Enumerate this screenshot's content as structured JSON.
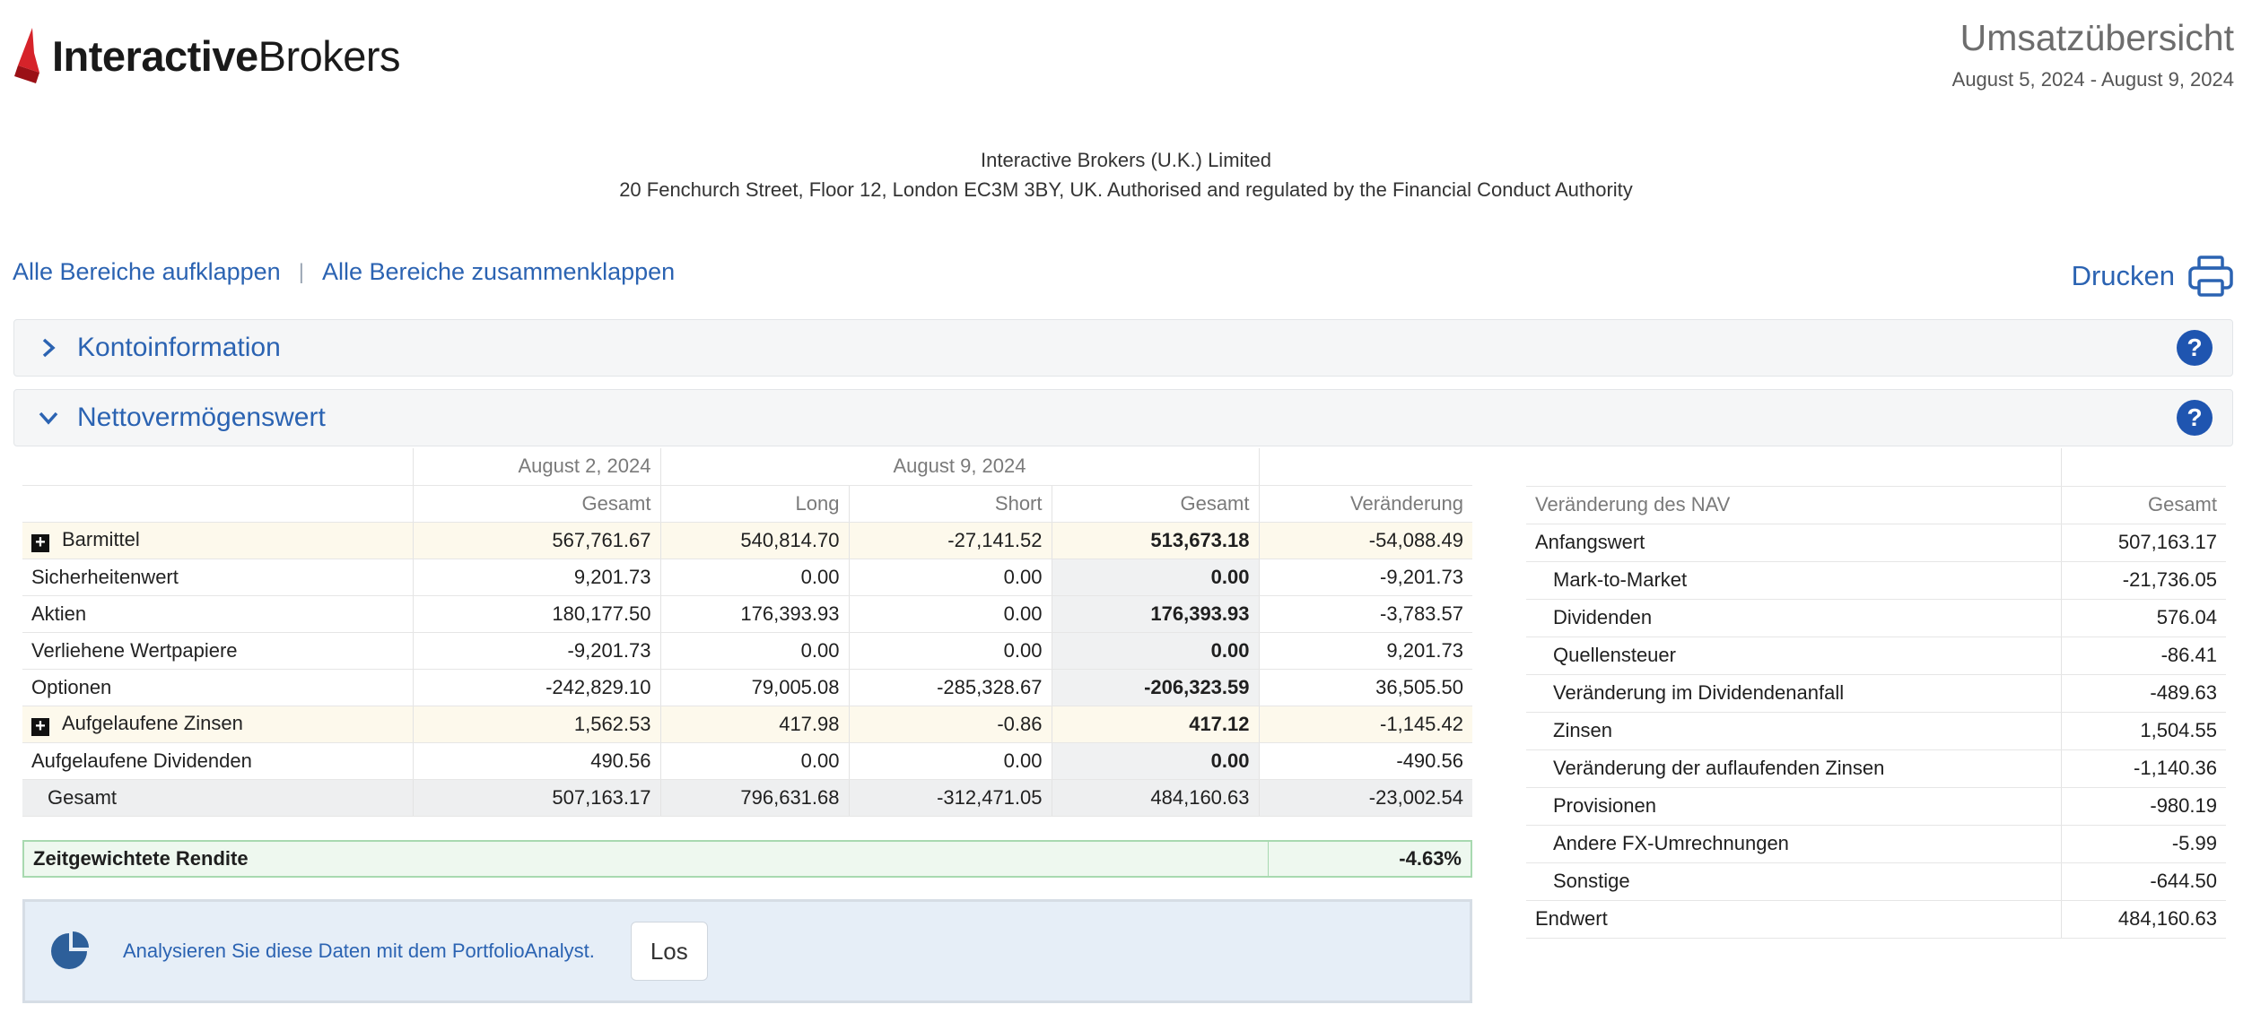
{
  "header": {
    "logo_bold": "Interactive",
    "logo_light": "Brokers",
    "title": "Umsatzübersicht",
    "date_range": "August 5, 2024 - August 9, 2024"
  },
  "company": {
    "name": "Interactive Brokers (U.K.) Limited",
    "address": "20 Fenchurch Street, Floor 12, London EC3M 3BY, UK. Authorised and regulated by the Financial Conduct Authority"
  },
  "toolbar": {
    "expand_all": "Alle Bereiche aufklappen",
    "separator": "|",
    "collapse_all": "Alle Bereiche zusammenklappen",
    "print": "Drucken"
  },
  "sections": {
    "account_info": "Kontoinformation",
    "nav": "Nettovermögenswert",
    "help": "?"
  },
  "nav_table": {
    "date1": "August 2, 2024",
    "date2": "August 9, 2024",
    "headers": [
      "Gesamt",
      "Long",
      "Short",
      "Gesamt",
      "Veränderung"
    ],
    "rows": [
      {
        "label": "Barmittel",
        "expandable": true,
        "values": [
          "567,761.67",
          "540,814.70",
          "-27,141.52",
          "513,673.18",
          "-54,088.49"
        ]
      },
      {
        "label": "Sicherheitenwert",
        "values": [
          "9,201.73",
          "0.00",
          "0.00",
          "0.00",
          "-9,201.73"
        ]
      },
      {
        "label": "Aktien",
        "values": [
          "180,177.50",
          "176,393.93",
          "0.00",
          "176,393.93",
          "-3,783.57"
        ]
      },
      {
        "label": "Verliehene Wertpapiere",
        "values": [
          "-9,201.73",
          "0.00",
          "0.00",
          "0.00",
          "9,201.73"
        ]
      },
      {
        "label": "Optionen",
        "values": [
          "-242,829.10",
          "79,005.08",
          "-285,328.67",
          "-206,323.59",
          "36,505.50"
        ]
      },
      {
        "label": "Aufgelaufene Zinsen",
        "expandable": true,
        "values": [
          "1,562.53",
          "417.98",
          "-0.86",
          "417.12",
          "-1,145.42"
        ]
      },
      {
        "label": "Aufgelaufene Dividenden",
        "values": [
          "490.56",
          "0.00",
          "0.00",
          "0.00",
          "-490.56"
        ]
      }
    ],
    "total": {
      "label": "Gesamt",
      "values": [
        "507,163.17",
        "796,631.68",
        "-312,471.05",
        "484,160.63",
        "-23,002.54"
      ]
    },
    "twr_label": "Zeitgewichtete Rendite",
    "twr_value": "-4.63%"
  },
  "analyst": {
    "text": "Analysieren Sie diese Daten mit dem PortfolioAnalyst.",
    "button": "Los"
  },
  "change_table": {
    "header_label": "Veränderung des NAV",
    "header_value": "Gesamt",
    "rows": [
      {
        "label": "Anfangswert",
        "value": "507,163.17"
      },
      {
        "label": "Mark-to-Market",
        "value": "-21,736.05",
        "indent": true
      },
      {
        "label": "Dividenden",
        "value": "576.04",
        "indent": true
      },
      {
        "label": "Quellensteuer",
        "value": "-86.41",
        "indent": true
      },
      {
        "label": "Veränderung im Dividendenanfall",
        "value": "-489.63",
        "indent": true
      },
      {
        "label": "Zinsen",
        "value": "1,504.55",
        "indent": true
      },
      {
        "label": "Veränderung der auflaufenden Zinsen",
        "value": "-1,140.36",
        "indent": true
      },
      {
        "label": "Provisionen",
        "value": "-980.19",
        "indent": true
      },
      {
        "label": "Andere FX-Umrechnungen",
        "value": "-5.99",
        "indent": true
      },
      {
        "label": "Sonstige",
        "value": "-644.50",
        "indent": true
      },
      {
        "label": "Endwert",
        "value": "484,160.63"
      }
    ]
  },
  "colors": {
    "accent": "#2b63b2",
    "help_bg": "#1f55b0",
    "highlight_row": "#fdf9ec",
    "twr_bg": "#eef8ef",
    "logo_red": "#d6232a"
  }
}
